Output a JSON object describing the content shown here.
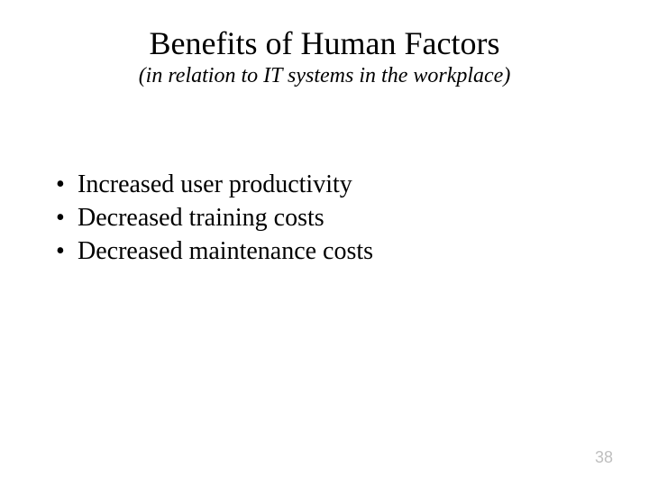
{
  "slide": {
    "title": "Benefits of Human Factors",
    "subtitle": "(in relation to IT systems in the workplace)",
    "bullets": [
      "Increased user productivity",
      "Decreased training costs",
      " Decreased maintenance costs"
    ],
    "page_number": "38",
    "colors": {
      "background": "#ffffff",
      "text": "#000000",
      "page_number": "#bfbfbf"
    },
    "typography": {
      "title_fontsize": 36,
      "subtitle_fontsize": 24,
      "bullet_fontsize": 28,
      "page_number_fontsize": 18,
      "font_family": "Times New Roman"
    }
  }
}
